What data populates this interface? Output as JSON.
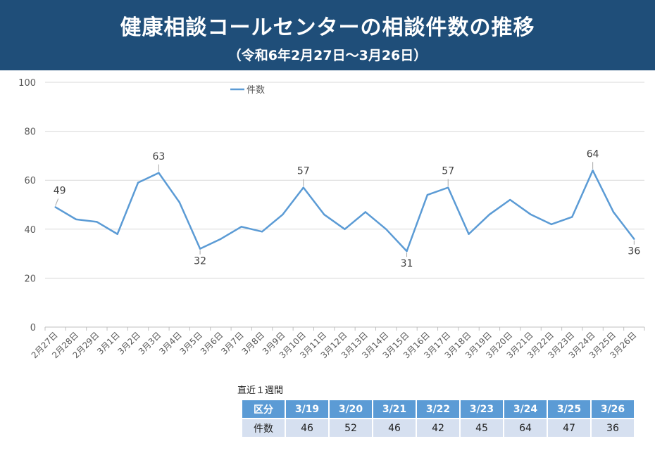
{
  "title": "健康相談コールセンターの相談件数の推移",
  "subtitle": "（令和6年2月27日～3月26日）",
  "chart_data": {
    "type": "line",
    "title": "健康相談コールセンターの相談件数の推移",
    "categories": [
      "2月27日",
      "2月28日",
      "2月29日",
      "3月1日",
      "3月2日",
      "3月3日",
      "3月4日",
      "3月5日",
      "3月6日",
      "3月7日",
      "3月8日",
      "3月9日",
      "3月10日",
      "3月11日",
      "3月12日",
      "3月13日",
      "3月14日",
      "3月15日",
      "3月16日",
      "3月17日",
      "3月18日",
      "3月19日",
      "3月20日",
      "3月21日",
      "3月22日",
      "3月23日",
      "3月24日",
      "3月25日",
      "3月26日"
    ],
    "series": [
      {
        "name": "件数",
        "values": [
          49,
          44,
          43,
          38,
          59,
          63,
          51,
          32,
          36,
          41,
          39,
          46,
          57,
          46,
          40,
          47,
          40,
          31,
          54,
          57,
          38,
          46,
          52,
          46,
          42,
          45,
          64,
          47,
          36
        ],
        "color": "#5b9bd5"
      }
    ],
    "data_labels": {
      "0": "49",
      "5": "63",
      "7": "32",
      "12": "57",
      "17": "31",
      "19": "57",
      "26": "64",
      "28": "36"
    },
    "ylim": [
      0,
      100
    ],
    "yticks": [
      "0",
      "20",
      "40",
      "60",
      "80",
      "100"
    ],
    "grid": true,
    "legend": "top-left"
  },
  "table": {
    "caption": "直近１週間",
    "header": [
      "区分",
      "3/19",
      "3/20",
      "3/21",
      "3/22",
      "3/23",
      "3/24",
      "3/25",
      "3/26"
    ],
    "row": [
      "件数",
      "46",
      "52",
      "46",
      "42",
      "45",
      "64",
      "47",
      "36"
    ]
  }
}
